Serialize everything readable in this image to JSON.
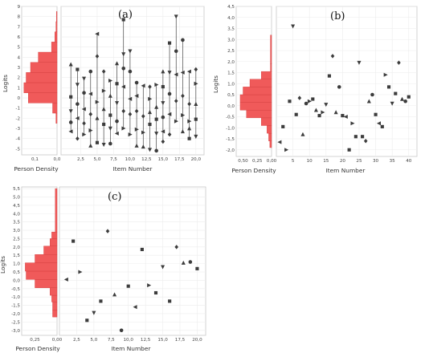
{
  "chart_data": [
    {
      "panel": "(a)",
      "type": "scatter",
      "xlabel": "Item Number",
      "ylabel": "Logits",
      "density_label": "Person Density",
      "ylim": [
        -5.6,
        9
      ],
      "yticks": [
        -5,
        -4,
        -3,
        -2,
        -1,
        0,
        1,
        2,
        3,
        4,
        5,
        6,
        7,
        8,
        9
      ],
      "xlim": [
        0,
        21
      ],
      "xticks": [
        "2,5",
        "5,0",
        "7,5",
        "10,0",
        "12,5",
        "15,0",
        "17,5",
        "20,0"
      ],
      "xtick_values": [
        2.5,
        5,
        7.5,
        10,
        12.5,
        15,
        17.5,
        20
      ],
      "density_ticks": [
        "0,1",
        "0,0"
      ],
      "density_tick_values": [
        0.1,
        0
      ],
      "density_max": 0.16,
      "density_bins": [
        {
          "y0": -2.5,
          "y1": -1.5,
          "d": 0.005
        },
        {
          "y0": -1.5,
          "y1": -0.5,
          "d": 0.02
        },
        {
          "y0": -0.5,
          "y1": 0.5,
          "d": 0.13
        },
        {
          "y0": 0.5,
          "y1": 1.5,
          "d": 0.15
        },
        {
          "y0": 1.5,
          "y1": 2.5,
          "d": 0.14
        },
        {
          "y0": 2.5,
          "y1": 3.5,
          "d": 0.12
        },
        {
          "y0": 3.5,
          "y1": 4.5,
          "d": 0.085
        },
        {
          "y0": 4.5,
          "y1": 5.5,
          "d": 0.025
        },
        {
          "y0": 5.5,
          "y1": 6.5,
          "d": 0.01
        },
        {
          "y0": 6.5,
          "y1": 7.5,
          "d": 0.005
        },
        {
          "y0": 7.5,
          "y1": 8.5,
          "d": 0.003
        }
      ],
      "items": [
        {
          "x": 1,
          "ys": [
            3.3,
            0.1,
            -1.3,
            -2.4,
            -3.3
          ]
        },
        {
          "x": 2,
          "ys": [
            2.8,
            1.3,
            -0.6,
            -2.0,
            -4.0
          ]
        },
        {
          "x": 3,
          "ys": [
            1.9,
            0.5,
            -1.1,
            -2.5,
            -3.6
          ]
        },
        {
          "x": 4,
          "ys": [
            2.6,
            0.4,
            -1.6,
            -3.2,
            -4.7
          ]
        },
        {
          "x": 5,
          "ys": [
            6.3,
            4.1,
            -0.4,
            -2.0,
            -4.4
          ]
        },
        {
          "x": 6,
          "ys": [
            2.6,
            0.7,
            -1.1,
            -2.6,
            -4.6
          ]
        },
        {
          "x": 7,
          "ys": [
            1.7,
            0.2,
            -1.7,
            -3.0,
            -4.5
          ]
        },
        {
          "x": 8,
          "ys": [
            3.4,
            1.4,
            -0.5,
            -2.3,
            -3.5
          ]
        },
        {
          "x": 9,
          "ys": [
            7.7,
            4.3,
            2.9,
            1.1,
            -1.3,
            -3.0
          ]
        },
        {
          "x": 10,
          "ys": [
            4.6,
            2.6,
            -0.1,
            -1.6,
            -3.6
          ]
        },
        {
          "x": 11,
          "ys": [
            1.5,
            0.2,
            -1.3,
            -3.1,
            -4.7
          ]
        },
        {
          "x": 12,
          "ys": [
            1.2,
            -1.8,
            -3.4,
            -4.8
          ]
        },
        {
          "x": 13,
          "ys": [
            1.1,
            -0.1,
            -1.4,
            -2.6,
            -5.1
          ]
        },
        {
          "x": 14,
          "ys": [
            1.3,
            -0.9,
            -2.1,
            -3.5,
            -5.2
          ]
        },
        {
          "x": 15,
          "ys": [
            2.6,
            1.1,
            -0.5,
            -1.9,
            -3.3,
            -4.3
          ]
        },
        {
          "x": 16,
          "ys": [
            5.4,
            2.5,
            0.4,
            -1.6,
            -3.6
          ]
        },
        {
          "x": 17,
          "ys": [
            8.0,
            4.6,
            2.3,
            -0.3,
            -2.3
          ]
        },
        {
          "x": 18,
          "ys": [
            5.7,
            2.5,
            0.2,
            -1.7,
            -3.3
          ]
        },
        {
          "x": 19,
          "ys": [
            2.6,
            -0.6,
            -2.3,
            -3.0,
            -4.0
          ]
        },
        {
          "x": 20,
          "ys": [
            2.8,
            1.4,
            -0.6,
            -2.1,
            -3.8
          ]
        }
      ]
    },
    {
      "panel": "(b)",
      "type": "scatter",
      "xlabel": "Item Number",
      "ylabel": "Logits",
      "density_label": "Person Density",
      "ylim": [
        -2.3,
        4.5
      ],
      "yticks": [
        "-2,0",
        "-1,5",
        "-1,0",
        "-0,5",
        "0,0",
        "0,5",
        "1,0",
        "1,5",
        "2,0",
        "2,5",
        "3,0",
        "3,5",
        "4,0",
        "4,5"
      ],
      "ytick_values": [
        -2,
        -1.5,
        -1,
        -0.5,
        0,
        0.5,
        1,
        1.5,
        2,
        2.5,
        3,
        3.5,
        4,
        4.5
      ],
      "xlim": [
        0,
        42
      ],
      "xticks": [
        "5",
        "10",
        "15",
        "20",
        "25",
        "30",
        "35",
        "40"
      ],
      "xtick_values": [
        5,
        10,
        15,
        20,
        25,
        30,
        35,
        40
      ],
      "density_ticks": [
        "0,50",
        "0,25",
        "0,00"
      ],
      "density_tick_values": [
        0.5,
        0.25,
        0
      ],
      "density_max": 0.62,
      "density_bins": [
        {
          "y0": -1.9,
          "y1": -1.6,
          "d": 0.03
        },
        {
          "y0": -1.6,
          "y1": -1.25,
          "d": 0.05
        },
        {
          "y0": -1.25,
          "y1": -0.9,
          "d": 0.08
        },
        {
          "y0": -0.9,
          "y1": -0.55,
          "d": 0.18
        },
        {
          "y0": -0.55,
          "y1": -0.2,
          "d": 0.44
        },
        {
          "y0": -0.2,
          "y1": 0.15,
          "d": 0.55
        },
        {
          "y0": 0.15,
          "y1": 0.5,
          "d": 0.55
        },
        {
          "y0": 0.5,
          "y1": 0.85,
          "d": 0.5
        },
        {
          "y0": 0.85,
          "y1": 1.2,
          "d": 0.38
        },
        {
          "y0": 1.2,
          "y1": 1.55,
          "d": 0.18
        },
        {
          "y0": 1.55,
          "y1": 1.9,
          "d": 0.02
        },
        {
          "y0": 1.9,
          "y1": 3.2,
          "d": 0.02
        }
      ],
      "points": [
        {
          "x": 1,
          "y": -1.65,
          "m": "tl"
        },
        {
          "x": 2,
          "y": -0.95,
          "m": "s"
        },
        {
          "x": 3,
          "y": -2.0,
          "m": "tr"
        },
        {
          "x": 4,
          "y": 0.2,
          "m": "s"
        },
        {
          "x": 5,
          "y": 3.6,
          "m": "td"
        },
        {
          "x": 6,
          "y": -0.4,
          "m": "s"
        },
        {
          "x": 7,
          "y": 0.35,
          "m": "d"
        },
        {
          "x": 8,
          "y": -1.3,
          "m": "tu"
        },
        {
          "x": 9,
          "y": 0.1,
          "m": "c"
        },
        {
          "x": 10,
          "y": 0.2,
          "m": "tr"
        },
        {
          "x": 11,
          "y": 0.3,
          "m": "s"
        },
        {
          "x": 12,
          "y": -0.2,
          "m": "tu"
        },
        {
          "x": 13,
          "y": -0.45,
          "m": "s"
        },
        {
          "x": 14,
          "y": -0.3,
          "m": "tr"
        },
        {
          "x": 15,
          "y": 0.05,
          "m": "td"
        },
        {
          "x": 16,
          "y": 1.35,
          "m": "s"
        },
        {
          "x": 17,
          "y": 2.25,
          "m": "d"
        },
        {
          "x": 18,
          "y": -0.3,
          "m": "tu"
        },
        {
          "x": 19,
          "y": 0.85,
          "m": "c"
        },
        {
          "x": 20,
          "y": -0.45,
          "m": "s"
        },
        {
          "x": 21,
          "y": -0.5,
          "m": "tl"
        },
        {
          "x": 22,
          "y": -2.0,
          "m": "s"
        },
        {
          "x": 23,
          "y": -0.8,
          "m": "tr"
        },
        {
          "x": 24,
          "y": -1.4,
          "m": "s"
        },
        {
          "x": 25,
          "y": 1.95,
          "m": "td"
        },
        {
          "x": 26,
          "y": -1.4,
          "m": "s"
        },
        {
          "x": 27,
          "y": -1.6,
          "m": "d"
        },
        {
          "x": 28,
          "y": 0.2,
          "m": "tu"
        },
        {
          "x": 29,
          "y": 0.5,
          "m": "c"
        },
        {
          "x": 30,
          "y": -0.4,
          "m": "s"
        },
        {
          "x": 31,
          "y": -0.8,
          "m": "tl"
        },
        {
          "x": 32,
          "y": -0.95,
          "m": "s"
        },
        {
          "x": 33,
          "y": 1.4,
          "m": "tr"
        },
        {
          "x": 34,
          "y": 0.85,
          "m": "s"
        },
        {
          "x": 35,
          "y": 0.1,
          "m": "td"
        },
        {
          "x": 36,
          "y": 0.55,
          "m": "s"
        },
        {
          "x": 37,
          "y": 1.95,
          "m": "d"
        },
        {
          "x": 38,
          "y": 0.3,
          "m": "tu"
        },
        {
          "x": 39,
          "y": 0.2,
          "m": "c"
        },
        {
          "x": 40,
          "y": 0.4,
          "m": "s"
        }
      ]
    },
    {
      "panel": "(c)",
      "type": "scatter",
      "xlabel": "Item Number",
      "ylabel": "Logits",
      "density_label": "Person Density",
      "ylim": [
        -3.3,
        5.6
      ],
      "yticks": [
        "-3,0",
        "-2,5",
        "-2,0",
        "-1,5",
        "-1,0",
        "-0,5",
        "0,0",
        "0,5",
        "1,0",
        "1,5",
        "2,0",
        "2,5",
        "3,0",
        "3,5",
        "4,0",
        "4,5",
        "5,0",
        "5,5"
      ],
      "ytick_values": [
        -3,
        -2.5,
        -2,
        -1.5,
        -1,
        -0.5,
        0,
        0.5,
        1,
        1.5,
        2,
        2.5,
        3,
        3.5,
        4,
        4.5,
        5,
        5.5
      ],
      "xlim": [
        0,
        21
      ],
      "xticks": [
        "2,5",
        "5,0",
        "7,5",
        "10,0",
        "12,5",
        "15,0",
        "17,5",
        "20,0"
      ],
      "xtick_values": [
        2.5,
        5,
        7.5,
        10,
        12.5,
        15,
        17.5,
        20
      ],
      "density_ticks": [
        "0,25",
        "0,00"
      ],
      "density_tick_values": [
        0.25,
        0
      ],
      "density_max": 0.4,
      "density_bins": [
        {
          "y0": -2.2,
          "y1": -1.8,
          "d": 0.05
        },
        {
          "y0": -1.8,
          "y1": -1.3,
          "d": 0.05
        },
        {
          "y0": -1.3,
          "y1": -0.9,
          "d": 0.06
        },
        {
          "y0": -0.9,
          "y1": -0.45,
          "d": 0.08
        },
        {
          "y0": -0.45,
          "y1": 0.05,
          "d": 0.25
        },
        {
          "y0": 0.05,
          "y1": 0.55,
          "d": 0.35
        },
        {
          "y0": 0.55,
          "y1": 1.05,
          "d": 0.36
        },
        {
          "y0": 1.05,
          "y1": 1.55,
          "d": 0.25
        },
        {
          "y0": 1.55,
          "y1": 2.05,
          "d": 0.15
        },
        {
          "y0": 2.05,
          "y1": 2.5,
          "d": 0.08
        },
        {
          "y0": 2.5,
          "y1": 2.9,
          "d": 0.06
        },
        {
          "y0": 2.9,
          "y1": 5.5,
          "d": 0.02
        }
      ],
      "points": [
        {
          "x": 1,
          "y": 0.05,
          "m": "tl"
        },
        {
          "x": 2,
          "y": 2.35,
          "m": "s"
        },
        {
          "x": 3,
          "y": 0.5,
          "m": "tr"
        },
        {
          "x": 4,
          "y": -2.4,
          "m": "s"
        },
        {
          "x": 5,
          "y": -1.95,
          "m": "td"
        },
        {
          "x": 6,
          "y": -1.25,
          "m": "s"
        },
        {
          "x": 7,
          "y": 2.95,
          "m": "d"
        },
        {
          "x": 8,
          "y": -0.85,
          "m": "tu"
        },
        {
          "x": 9,
          "y": -3.0,
          "m": "c"
        },
        {
          "x": 10,
          "y": -0.35,
          "m": "s"
        },
        {
          "x": 11,
          "y": -1.6,
          "m": "tl"
        },
        {
          "x": 12,
          "y": 1.85,
          "m": "s"
        },
        {
          "x": 13,
          "y": -0.3,
          "m": "tr"
        },
        {
          "x": 14,
          "y": -0.75,
          "m": "s"
        },
        {
          "x": 15,
          "y": 0.8,
          "m": "td"
        },
        {
          "x": 16,
          "y": -1.25,
          "m": "s"
        },
        {
          "x": 17,
          "y": 2.0,
          "m": "d"
        },
        {
          "x": 18,
          "y": 1.05,
          "m": "tu"
        },
        {
          "x": 19,
          "y": 1.1,
          "m": "c"
        },
        {
          "x": 20,
          "y": 0.7,
          "m": "s"
        }
      ]
    }
  ]
}
